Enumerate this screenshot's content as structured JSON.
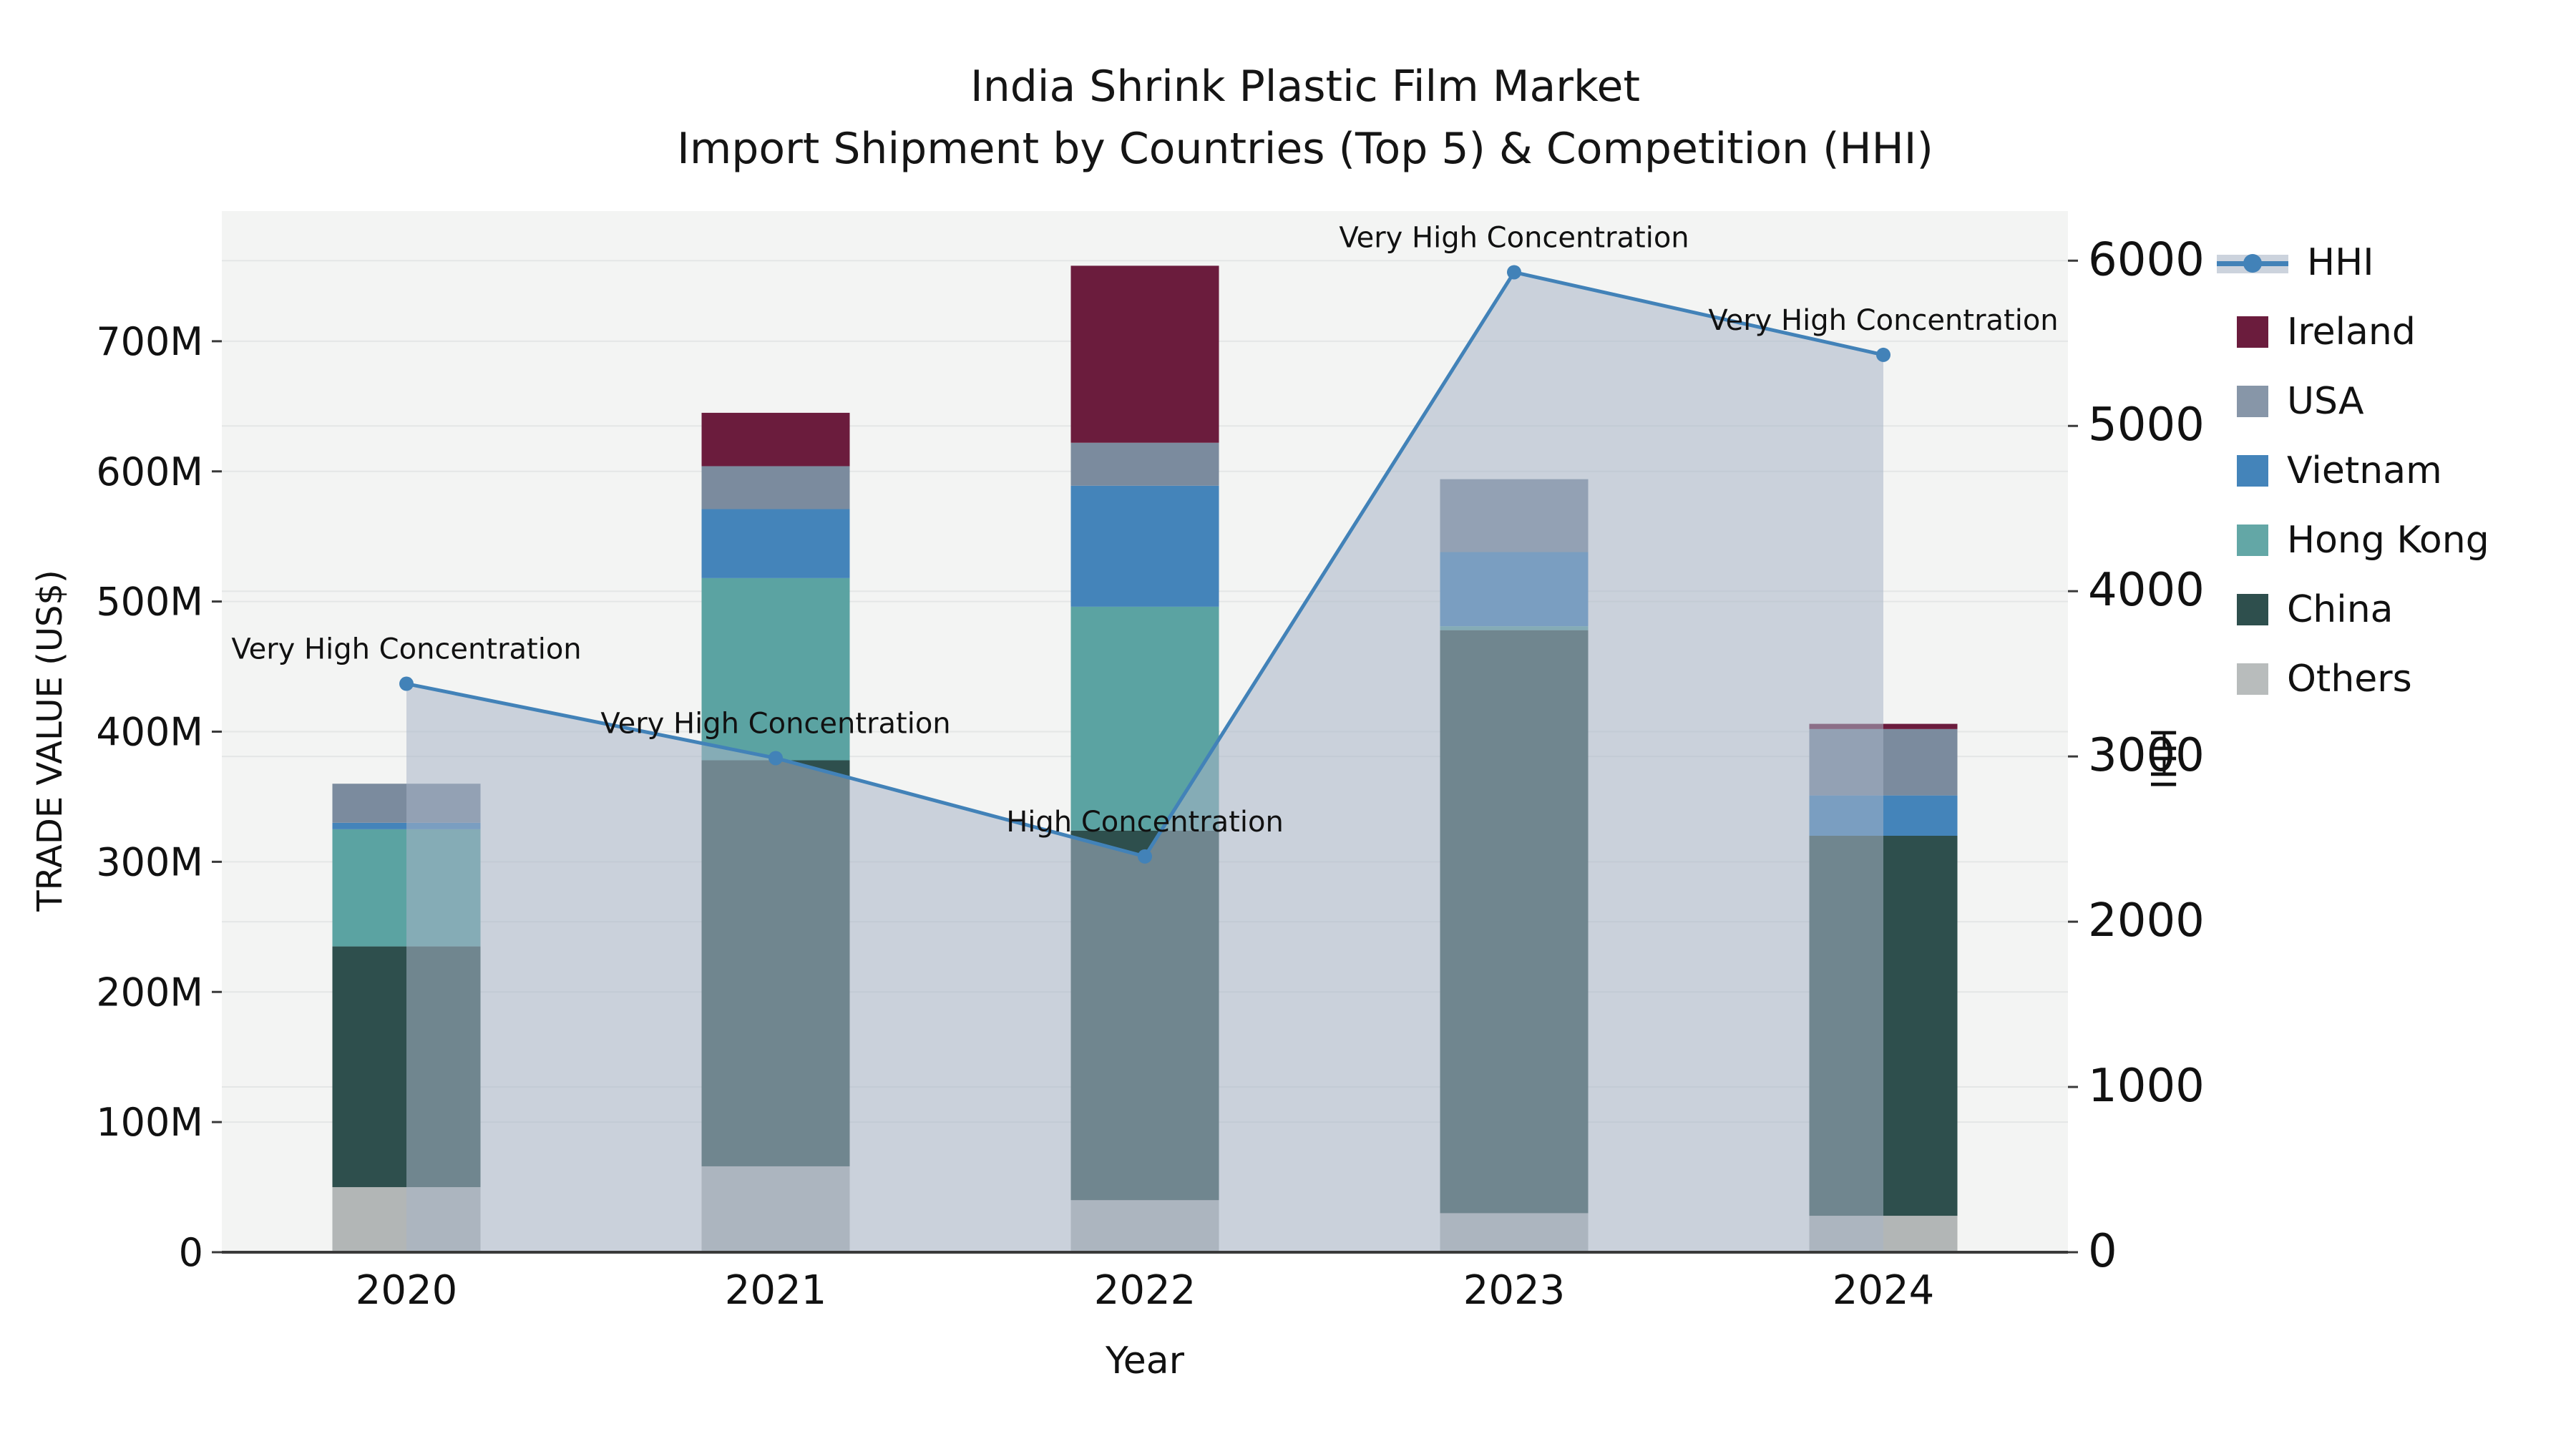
{
  "title": {
    "line1": "India Shrink Plastic Film Market",
    "line2": "Import Shipment by Countries (Top 5) & Competition (HHI)"
  },
  "axes": {
    "ylabel": "TRADE VALUE (US$)",
    "y2label": "HHI",
    "xlabel": "Year",
    "yticks": [
      "0",
      "100M",
      "200M",
      "300M",
      "400M",
      "500M",
      "600M",
      "700M"
    ],
    "ytick_values": [
      0,
      100,
      200,
      300,
      400,
      500,
      600,
      700
    ],
    "y2ticks": [
      "0",
      "1000",
      "2000",
      "3000",
      "4000",
      "5000",
      "6000"
    ],
    "y2tick_values": [
      0,
      1000,
      2000,
      3000,
      4000,
      5000,
      6000
    ],
    "ylim": [
      0,
      800
    ],
    "y2lim": [
      0,
      6300
    ]
  },
  "chart_data": {
    "type": "bar+line",
    "title": "India Shrink Plastic Film Market — Import Shipment by Countries (Top 5) & Competition (HHI)",
    "categories": [
      "2020",
      "2021",
      "2022",
      "2023",
      "2024"
    ],
    "unit": "Million US$",
    "series": [
      {
        "name": "Others",
        "color": "#b2b6b6",
        "values": [
          50,
          66,
          40,
          30,
          28
        ]
      },
      {
        "name": "China",
        "color": "#2e4f4d",
        "values": [
          185,
          312,
          284,
          448,
          292
        ]
      },
      {
        "name": "Hong Kong",
        "color": "#5ba3a2",
        "values": [
          90,
          140,
          172,
          3,
          0
        ]
      },
      {
        "name": "Vietnam",
        "color": "#4484ba",
        "values": [
          5,
          53,
          93,
          57,
          31
        ]
      },
      {
        "name": "USA",
        "color": "#7b8b9e",
        "values": [
          30,
          33,
          33,
          56,
          51
        ]
      },
      {
        "name": "Ireland",
        "color": "#6b1c3d",
        "values": [
          0,
          41,
          136,
          0,
          4
        ]
      }
    ],
    "totals": [
      360,
      645,
      758,
      594,
      406
    ],
    "hhi": {
      "name": "HHI",
      "line_color": "#4282b8",
      "area_color": "rgba(168,180,198,0.55)",
      "values": [
        3440,
        2990,
        2395,
        5930,
        5430
      ]
    },
    "annotations": [
      "Very High Concentration",
      "Very High Concentration",
      "High Concentration",
      "Very High Concentration",
      "Very High Concentration"
    ],
    "xlabel": "Year",
    "ylabel": "TRADE VALUE (US$)",
    "y2label": "HHI",
    "grid": true,
    "legend_position": "right"
  },
  "legend": {
    "items": [
      {
        "label": "HHI",
        "type": "line",
        "color": "#4282b8",
        "band": "#ccd3dd"
      },
      {
        "label": "Ireland",
        "type": "patch",
        "color": "#6b1c3d"
      },
      {
        "label": "USA",
        "type": "patch",
        "color": "#8796a8"
      },
      {
        "label": "Vietnam",
        "type": "patch",
        "color": "#4484ba"
      },
      {
        "label": "Hong Kong",
        "type": "patch",
        "color": "#63a7a6"
      },
      {
        "label": "China",
        "type": "patch",
        "color": "#2e4f4d"
      },
      {
        "label": "Others",
        "type": "patch",
        "color": "#b8bcbc"
      }
    ]
  },
  "style": {
    "plot_bg": "#f3f4f3",
    "grid_color": "#e4e6e6",
    "axis_color": "#3a3a3a",
    "text_color": "#111111"
  }
}
